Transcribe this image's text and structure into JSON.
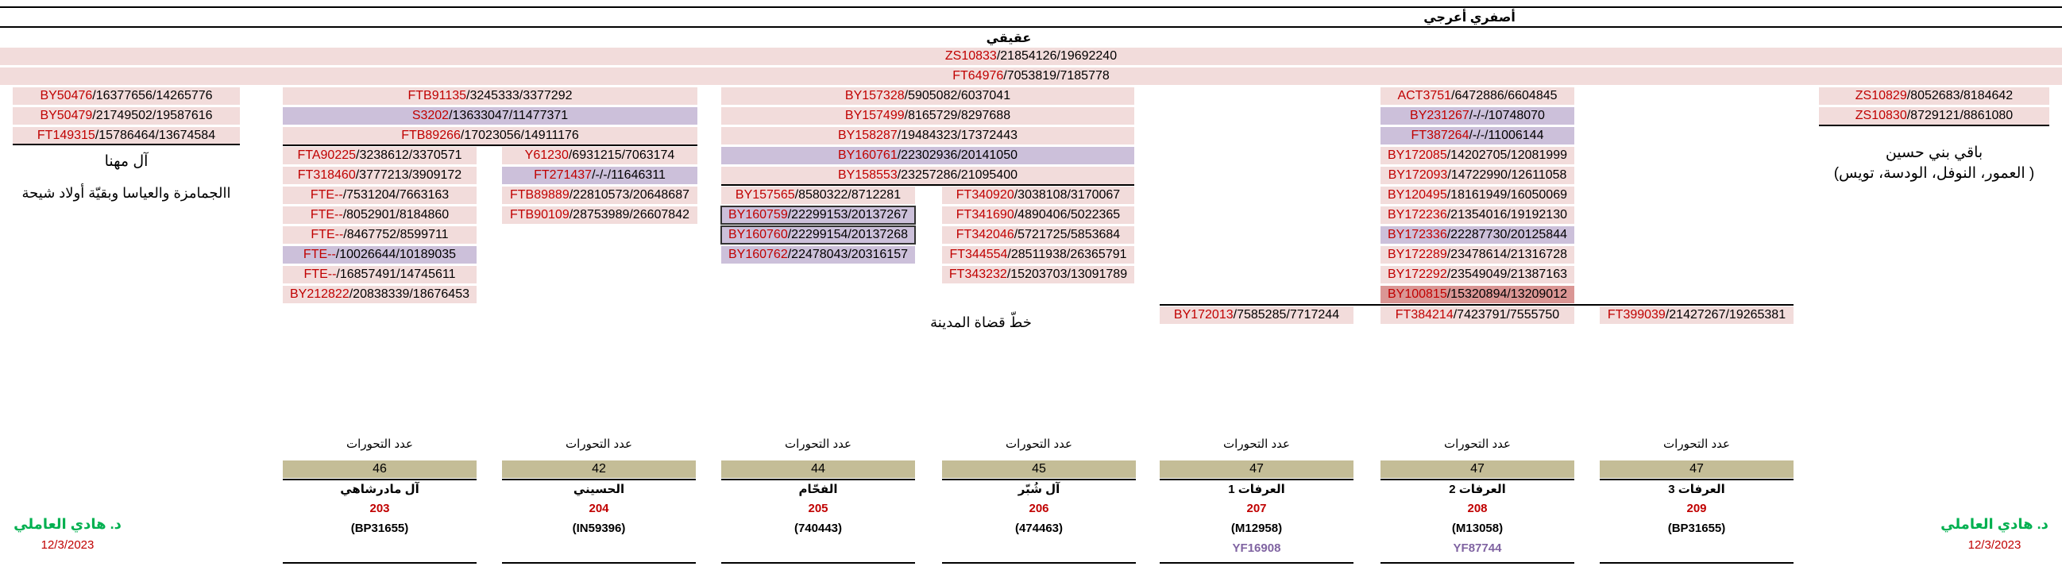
{
  "header": {
    "top_title": "أصفري أعرجي",
    "second_title": "عقيقي",
    "shared_rows": [
      {
        "code": "ZS10833",
        "nums": "21854126/19692240"
      },
      {
        "code": "FT64976",
        "nums": "7053819/7185778"
      }
    ]
  },
  "left_branch": {
    "rows": [
      {
        "code": "BY50476",
        "nums": "16377656/14265776"
      },
      {
        "code": "BY50479",
        "nums": "21749502/19587616"
      },
      {
        "code": "FT149315",
        "nums": "15786464/13674584"
      }
    ],
    "name": "آل مهنا",
    "sub": "ا‌الجمامزة والعياسا وبقيّة أولاد شيحة"
  },
  "right_branch": {
    "rows": [
      {
        "code": "ZS10829",
        "nums": "8052683/8184642"
      },
      {
        "code": "ZS10830",
        "nums": "8729121/8861080"
      }
    ],
    "name": "باقي بني حسين",
    "sub": "(العمور، النوفل، الودسة، تويس )"
  },
  "branch_a": {
    "rows": [
      {
        "code": "FTB91135",
        "nums": "3245333/3377292",
        "bg": "pink"
      },
      {
        "code": "S3202",
        "nums": "13633047/11477371",
        "bg": "lav"
      },
      {
        "code": "FTB89266",
        "nums": "17023056/14911176",
        "bg": "pink"
      }
    ],
    "col1": [
      {
        "code": "FTA90225",
        "nums": "3238612/3370571",
        "bg": "pink"
      },
      {
        "code": "FT318460",
        "nums": "3777213/3909172",
        "bg": "pink"
      },
      {
        "code": "FTE--",
        "nums": "7531204/7663163",
        "bg": "pink"
      },
      {
        "code": "FTE--",
        "nums": "8052901/8184860",
        "bg": "pink"
      },
      {
        "code": "FTE--",
        "nums": "8467752/8599711",
        "bg": "pink"
      },
      {
        "code": "FTE--",
        "nums": "10026644/10189035",
        "bg": "lav"
      },
      {
        "code": "FTE--",
        "nums": "16857491/14745611",
        "bg": "pink"
      },
      {
        "code": "BY212822",
        "nums": "20838339/18676453",
        "bg": "pink"
      }
    ],
    "col2": [
      {
        "code": "Y61230",
        "nums": "6931215/7063174",
        "bg": "pink"
      },
      {
        "code": "FT271437",
        "nums": "-/-/11646311",
        "bg": "lav"
      },
      {
        "code": "FTB89889",
        "nums": "22810573/20648687",
        "bg": "pink"
      },
      {
        "code": "FTB90109",
        "nums": "28753989/26607842",
        "bg": "pink"
      }
    ]
  },
  "branch_b": {
    "rows": [
      {
        "code": "BY157328",
        "nums": "5905082/6037041",
        "bg": "pink"
      },
      {
        "code": "BY157499",
        "nums": "8165729/8297688",
        "bg": "pink"
      },
      {
        "code": "BY158287",
        "nums": "19484323/17372443",
        "bg": "pink"
      },
      {
        "code": "BY160761",
        "nums": "22302936/20141050",
        "bg": "lav"
      },
      {
        "code": "BY158553",
        "nums": "23257286/21095400",
        "bg": "pink"
      }
    ],
    "col1": [
      {
        "code": "BY157565",
        "nums": "8580322/8712281",
        "bg": "pink"
      },
      {
        "code": "BY160759",
        "nums": "22299153/20137267",
        "bg": "lav"
      },
      {
        "code": "BY160760",
        "nums": "22299154/20137268",
        "bg": "lav"
      },
      {
        "code": "BY160762",
        "nums": "22478043/20316157",
        "bg": "lav"
      }
    ],
    "col2": [
      {
        "code": "FT340920",
        "nums": "3038108/3170067",
        "bg": "pink"
      },
      {
        "code": "FT341690",
        "nums": "4890406/5022365",
        "bg": "pink"
      },
      {
        "code": "FT342046",
        "nums": "5721725/5853684",
        "bg": "pink"
      },
      {
        "code": "FT344554",
        "nums": "28511938/26365791",
        "bg": "pink"
      },
      {
        "code": "FT343232",
        "nums": "15203703/13091789",
        "bg": "pink"
      }
    ],
    "note": "خطّ قضاة المدينة"
  },
  "branch_c": {
    "rows": [
      {
        "code": "ACT3751",
        "nums": "6472886/6604845",
        "bg": "pink"
      },
      {
        "code": "BY231267",
        "nums": "-/-/10748070",
        "bg": "lav"
      },
      {
        "code": "FT387264",
        "nums": "-/-/11006144",
        "bg": "lav"
      },
      {
        "code": "BY172085",
        "nums": "14202705/12081999",
        "bg": "pink"
      },
      {
        "code": "BY172093",
        "nums": "14722990/12611058",
        "bg": "pink"
      },
      {
        "code": "BY120495",
        "nums": "18161949/16050069",
        "bg": "pink"
      },
      {
        "code": "BY172236",
        "nums": "21354016/19192130",
        "bg": "pink"
      },
      {
        "code": "BY172336",
        "nums": "22287730/20125844",
        "bg": "lav"
      },
      {
        "code": "BY172289",
        "nums": "23478614/21316728",
        "bg": "pink"
      },
      {
        "code": "BY172292",
        "nums": "23549049/21387163",
        "bg": "pink"
      },
      {
        "code": "BY100815",
        "nums": "15320894/13209012",
        "bg": "dk"
      }
    ],
    "leaves": [
      {
        "code": "BY172013",
        "nums": "7585285/7717244"
      },
      {
        "code": "FT384214",
        "nums": "7423791/7555750"
      },
      {
        "code": "FT399039",
        "nums": "21427267/19265381"
      }
    ]
  },
  "bottom": {
    "mutations_label": "عدد التحورات",
    "columns": [
      {
        "count": "46",
        "name": "آل مادرشاهي",
        "id": "203",
        "kit": "(BP31655)",
        "extra": ""
      },
      {
        "count": "42",
        "name": "الحسيني",
        "id": "204",
        "kit": "(IN59396)",
        "extra": ""
      },
      {
        "count": "44",
        "name": "الفحّام",
        "id": "205",
        "kit": "(740443)",
        "extra": ""
      },
      {
        "count": "45",
        "name": "آل شُبّر",
        "id": "206",
        "kit": "(474463)",
        "extra": ""
      },
      {
        "count": "47",
        "name": "العرفات 1",
        "id": "207",
        "kit": "(M12958)",
        "extra": "YF16908"
      },
      {
        "count": "47",
        "name": "العرفات 2",
        "id": "208",
        "kit": "(M13058)",
        "extra": "YF87744"
      },
      {
        "count": "47",
        "name": "العرفات 3",
        "id": "209",
        "kit": "(BP31655)",
        "extra": ""
      }
    ]
  },
  "signature": {
    "name": "د. هادي العاملي",
    "date": "12/3/2023"
  },
  "colors": {
    "code_red": "#c00000",
    "pink": "#f2dcdb",
    "lavender": "#ccc0da",
    "olive": "#c4bd97",
    "green": "#00b050"
  }
}
